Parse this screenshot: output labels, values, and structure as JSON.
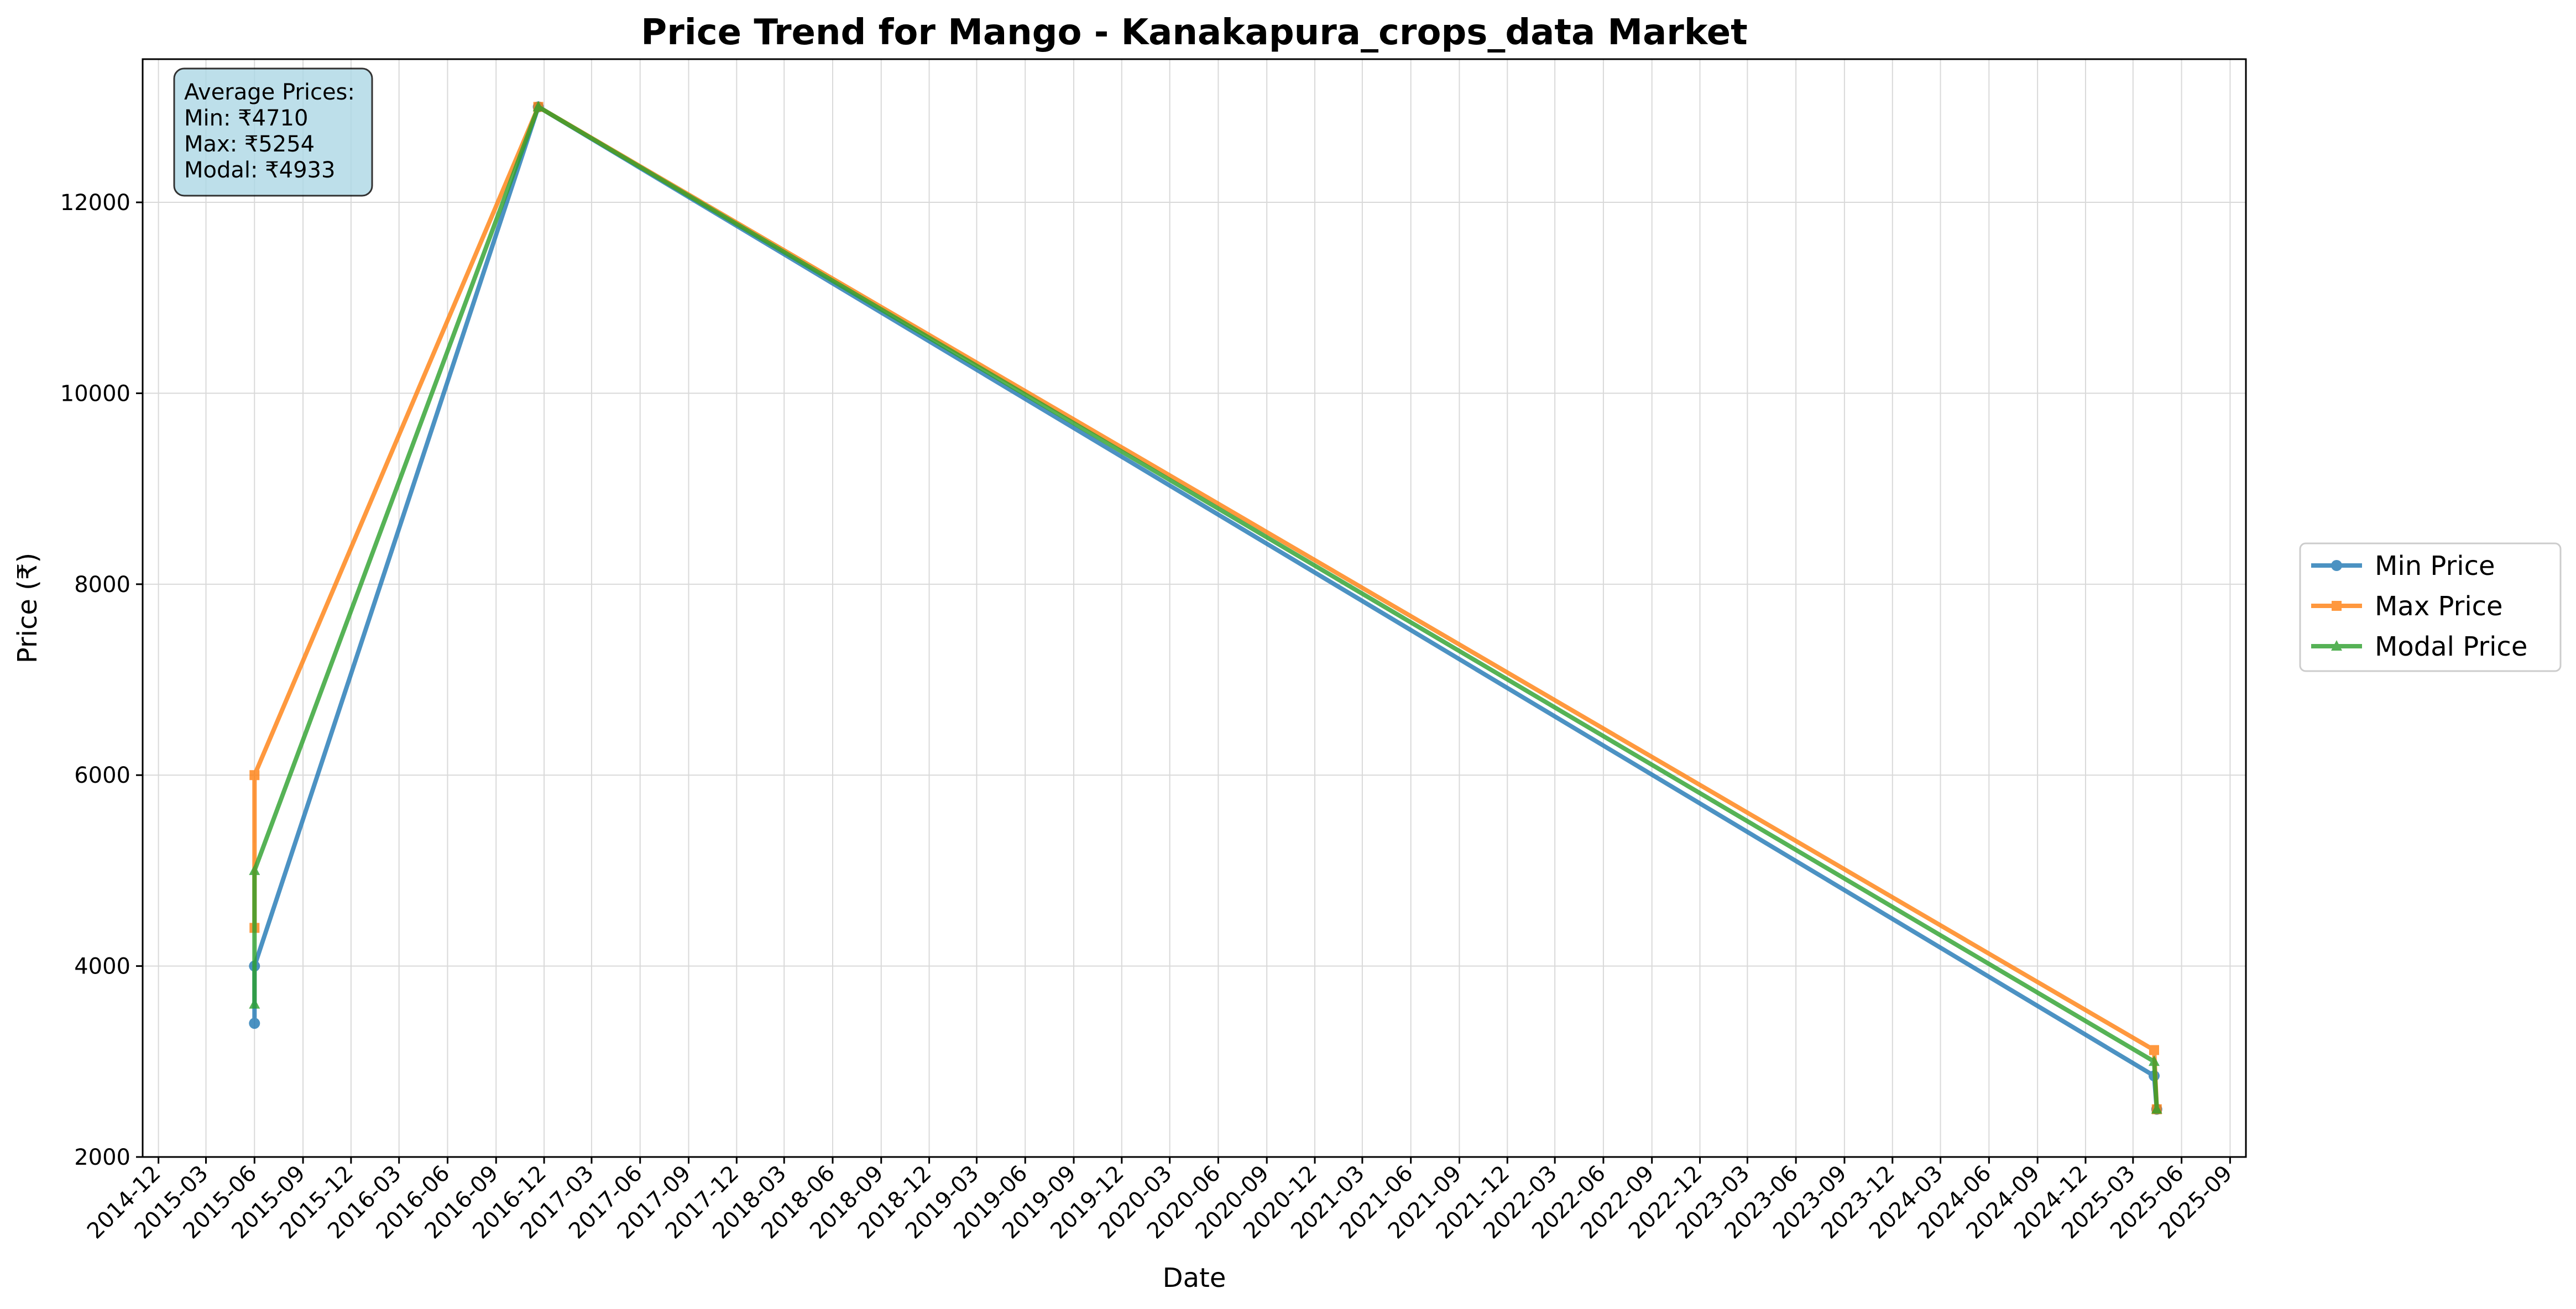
{
  "chart_data": {
    "type": "line",
    "title": "Price Trend for Mango - Kanakapura_crops_data Market",
    "xlabel": "Date",
    "ylabel": "Price (₹)",
    "ylim": [
      2000,
      13500
    ],
    "xlim": [
      "2014-11-01",
      "2025-10-01"
    ],
    "grid": true,
    "legend_position": "right",
    "x_ticks": [
      "2014-12",
      "2015-03",
      "2015-06",
      "2015-09",
      "2015-12",
      "2016-03",
      "2016-06",
      "2016-09",
      "2016-12",
      "2017-03",
      "2017-06",
      "2017-09",
      "2017-12",
      "2018-03",
      "2018-06",
      "2018-09",
      "2018-12",
      "2019-03",
      "2019-06",
      "2019-09",
      "2019-12",
      "2020-03",
      "2020-06",
      "2020-09",
      "2020-12",
      "2021-03",
      "2021-06",
      "2021-09",
      "2021-12",
      "2022-03",
      "2022-06",
      "2022-09",
      "2022-12",
      "2023-03",
      "2023-06",
      "2023-09",
      "2023-12",
      "2024-03",
      "2024-06",
      "2024-09",
      "2024-12",
      "2025-03",
      "2025-06",
      "2025-09"
    ],
    "y_ticks": [
      2000,
      4000,
      6000,
      8000,
      10000,
      12000
    ],
    "series": [
      {
        "name": "Min Price",
        "color": "#1f77b4",
        "marker": "circle",
        "points": [
          {
            "date": "2015-06-01",
            "value": 3400
          },
          {
            "date": "2015-06-01",
            "value": 4000
          },
          {
            "date": "2016-11-20",
            "value": 13000
          },
          {
            "date": "2025-04-10",
            "value": 2850
          },
          {
            "date": "2025-04-15",
            "value": 2500
          }
        ]
      },
      {
        "name": "Max Price",
        "color": "#ff7f0e",
        "marker": "square",
        "points": [
          {
            "date": "2015-06-01",
            "value": 4400
          },
          {
            "date": "2015-06-01",
            "value": 6000
          },
          {
            "date": "2016-11-20",
            "value": 13000
          },
          {
            "date": "2025-04-10",
            "value": 3120
          },
          {
            "date": "2025-04-15",
            "value": 2500
          }
        ]
      },
      {
        "name": "Modal Price",
        "color": "#2ca02c",
        "marker": "triangle",
        "points": [
          {
            "date": "2015-06-01",
            "value": 3600
          },
          {
            "date": "2015-06-01",
            "value": 5000
          },
          {
            "date": "2016-11-20",
            "value": 13000
          },
          {
            "date": "2025-04-10",
            "value": 3000
          },
          {
            "date": "2025-04-15",
            "value": 2500
          }
        ]
      }
    ],
    "stats_box": {
      "heading": "Average Prices:",
      "lines": [
        "Min: ₹4710",
        "Max: ₹5254",
        "Modal: ₹4933"
      ],
      "background": "#add8e6"
    }
  }
}
